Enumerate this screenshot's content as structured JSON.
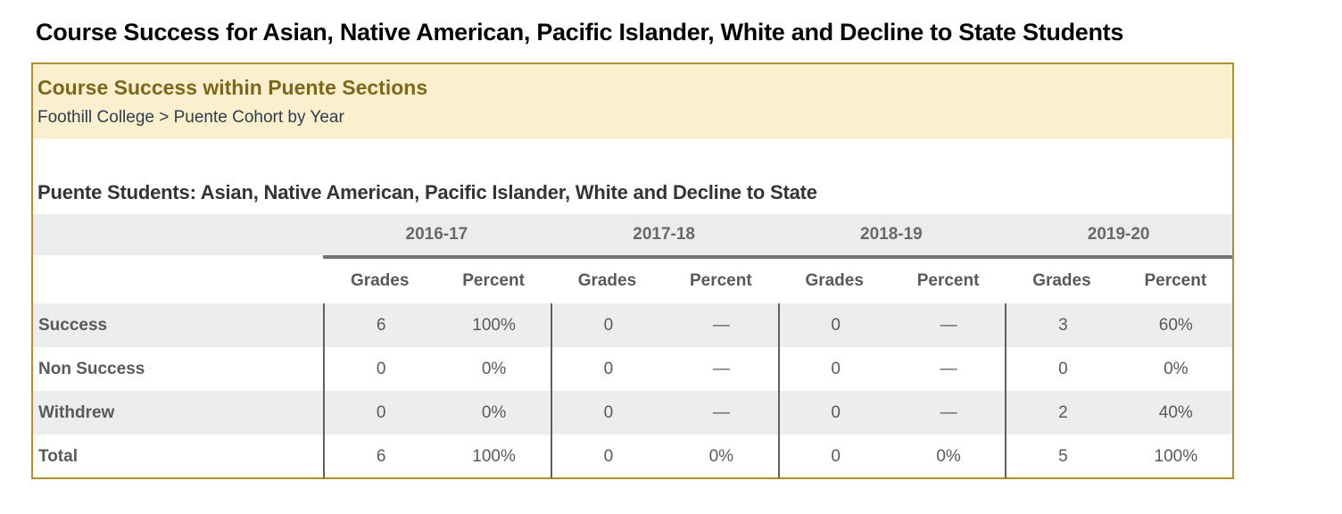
{
  "page_title": "Course Success for Asian, Native American, Pacific Islander, White and Decline to State Students",
  "banner": {
    "heading": "Course Success within Puente Sections",
    "breadcrumb": "Foothill College > Puente Cohort by Year"
  },
  "colors": {
    "box_border_gold": "#b2912d",
    "banner_background": "#fbf0cd",
    "banner_heading": "#7c671d",
    "header_band_gray": "#ececec",
    "row_stripe_gray": "#ededed",
    "table_text_gray": "#595959",
    "thick_rule_gray": "#747474"
  },
  "chart_data": {
    "type": "table",
    "title": "Puente Students: Asian, Native American, Pacific Islander, White and Decline to State",
    "year_groups": [
      "2016-17",
      "2017-18",
      "2018-19",
      "2019-20"
    ],
    "sub_headers": [
      "Grades",
      "Percent"
    ],
    "rows": [
      {
        "label": "Success",
        "cells": [
          "6",
          "100%",
          "0",
          "—",
          "0",
          "—",
          "3",
          "60%"
        ]
      },
      {
        "label": "Non Success",
        "cells": [
          "0",
          "0%",
          "0",
          "—",
          "0",
          "—",
          "0",
          "0%"
        ]
      },
      {
        "label": "Withdrew",
        "cells": [
          "0",
          "0%",
          "0",
          "—",
          "0",
          "—",
          "2",
          "40%"
        ]
      },
      {
        "label": "Total",
        "cells": [
          "6",
          "100%",
          "0",
          "0%",
          "0",
          "0%",
          "5",
          "100%"
        ]
      }
    ]
  }
}
